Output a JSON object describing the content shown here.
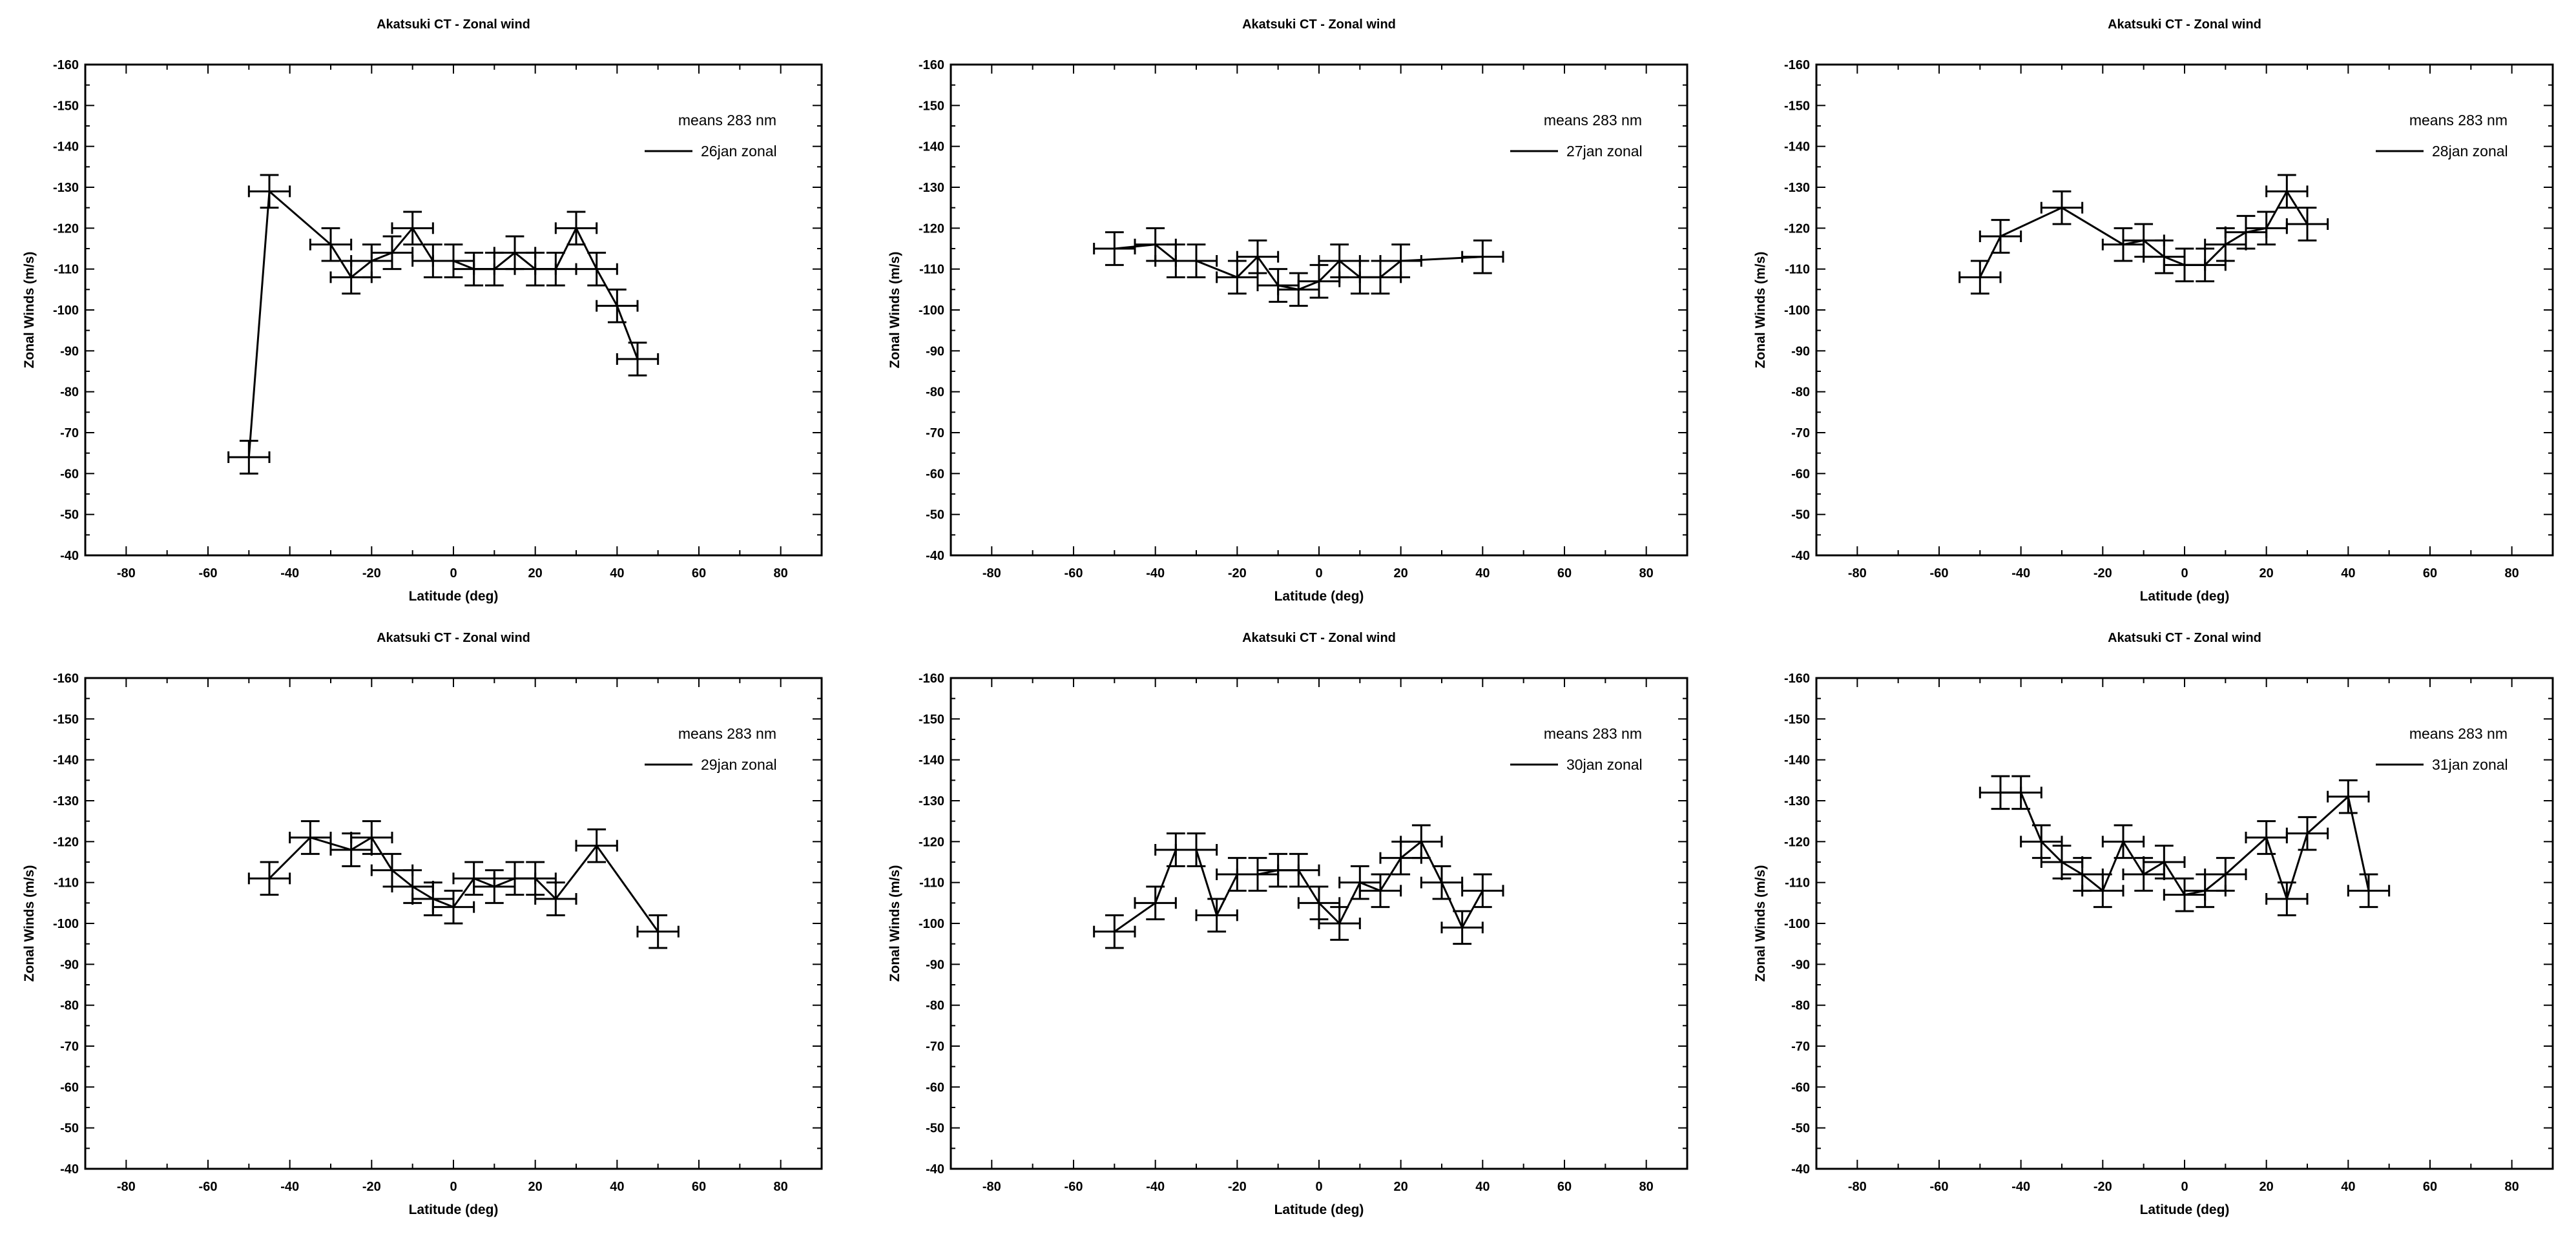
{
  "chart_data": [
    {
      "type": "scatter",
      "title": "Akatsuki CT - Zonal wind",
      "xlabel": "Latitude (deg)",
      "ylabel": "Zonal Winds (m/s)",
      "xlim": [
        -90,
        90
      ],
      "ylim": [
        -40,
        -160
      ],
      "xticks": [
        -80,
        -60,
        -40,
        -20,
        0,
        20,
        40,
        60,
        80
      ],
      "yticks": [
        -160,
        -150,
        -140,
        -130,
        -120,
        -110,
        -100,
        -90,
        -80,
        -70,
        -60,
        -50,
        -40
      ],
      "legend_title": "means 283 nm",
      "legend_position": "top-right",
      "grid": false,
      "series": [
        {
          "name": "26jan zonal",
          "x": [
            -50,
            -45,
            -30,
            -25,
            -20,
            -15,
            -10,
            -5,
            0,
            5,
            10,
            15,
            20,
            25,
            30,
            35,
            40,
            45
          ],
          "y": [
            -64,
            -129,
            -116,
            -108,
            -112,
            -114,
            -120,
            -112,
            -112,
            -110,
            -110,
            -114,
            -110,
            -110,
            -120,
            -110,
            -101,
            -88
          ],
          "xerr": 5,
          "yerr": [
            4,
            4,
            4,
            4,
            4,
            4,
            4,
            4,
            4,
            4,
            4,
            4,
            4,
            4,
            4,
            4,
            4,
            4
          ]
        }
      ]
    },
    {
      "type": "scatter",
      "title": "Akatsuki CT - Zonal wind",
      "xlabel": "Latitude (deg)",
      "ylabel": "Zonal Winds (m/s)",
      "xlim": [
        -90,
        90
      ],
      "ylim": [
        -40,
        -160
      ],
      "xticks": [
        -80,
        -60,
        -40,
        -20,
        0,
        20,
        40,
        60,
        80
      ],
      "yticks": [
        -160,
        -150,
        -140,
        -130,
        -120,
        -110,
        -100,
        -90,
        -80,
        -70,
        -60,
        -50,
        -40
      ],
      "legend_title": "means 283 nm",
      "legend_position": "top-right",
      "grid": false,
      "series": [
        {
          "name": "27jan zonal",
          "x": [
            -50,
            -40,
            -35,
            -30,
            -20,
            -15,
            -10,
            -5,
            0,
            5,
            10,
            15,
            20,
            40
          ],
          "y": [
            -115,
            -116,
            -112,
            -112,
            -108,
            -113,
            -106,
            -105,
            -107,
            -112,
            -108,
            -108,
            -112,
            -113
          ],
          "xerr": 5,
          "yerr": [
            4,
            4,
            4,
            4,
            4,
            4,
            4,
            4,
            4,
            4,
            4,
            4,
            4,
            4
          ]
        }
      ]
    },
    {
      "type": "scatter",
      "title": "Akatsuki CT - Zonal wind",
      "xlabel": "Latitude (deg)",
      "ylabel": "Zonal Winds (m/s)",
      "xlim": [
        -90,
        90
      ],
      "ylim": [
        -40,
        -160
      ],
      "xticks": [
        -80,
        -60,
        -40,
        -20,
        0,
        20,
        40,
        60,
        80
      ],
      "yticks": [
        -160,
        -150,
        -140,
        -130,
        -120,
        -110,
        -100,
        -90,
        -80,
        -70,
        -60,
        -50,
        -40
      ],
      "legend_title": "means 283 nm",
      "legend_position": "top-right",
      "grid": false,
      "series": [
        {
          "name": "28jan zonal",
          "x": [
            -50,
            -45,
            -30,
            -15,
            -10,
            -5,
            0,
            5,
            10,
            15,
            20,
            25,
            30
          ],
          "y": [
            -108,
            -118,
            -125,
            -116,
            -117,
            -113,
            -111,
            -111,
            -116,
            -119,
            -120,
            -129,
            -121
          ],
          "xerr": 5,
          "yerr": [
            4,
            4,
            4,
            4,
            4,
            4,
            4,
            4,
            4,
            4,
            4,
            4,
            4
          ]
        }
      ]
    },
    {
      "type": "scatter",
      "title": "Akatsuki CT - Zonal wind",
      "xlabel": "Latitude (deg)",
      "ylabel": "Zonal Winds (m/s)",
      "xlim": [
        -90,
        90
      ],
      "ylim": [
        -40,
        -160
      ],
      "xticks": [
        -80,
        -60,
        -40,
        -20,
        0,
        20,
        40,
        60,
        80
      ],
      "yticks": [
        -160,
        -150,
        -140,
        -130,
        -120,
        -110,
        -100,
        -90,
        -80,
        -70,
        -60,
        -50,
        -40
      ],
      "legend_title": "means 283 nm",
      "legend_position": "top-right",
      "grid": false,
      "series": [
        {
          "name": "29jan zonal",
          "x": [
            -45,
            -35,
            -25,
            -20,
            -15,
            -10,
            -5,
            0,
            5,
            10,
            15,
            20,
            25,
            35,
            50
          ],
          "y": [
            -111,
            -121,
            -118,
            -121,
            -113,
            -109,
            -106,
            -104,
            -111,
            -109,
            -111,
            -111,
            -106,
            -119,
            -98
          ],
          "xerr": 5,
          "yerr": [
            4,
            4,
            4,
            4,
            4,
            4,
            4,
            4,
            4,
            4,
            4,
            4,
            4,
            4,
            4
          ]
        }
      ]
    },
    {
      "type": "scatter",
      "title": "Akatsuki CT - Zonal wind",
      "xlabel": "Latitude (deg)",
      "ylabel": "Zonal Winds (m/s)",
      "xlim": [
        -90,
        90
      ],
      "ylim": [
        -40,
        -160
      ],
      "xticks": [
        -80,
        -60,
        -40,
        -20,
        0,
        20,
        40,
        60,
        80
      ],
      "yticks": [
        -160,
        -150,
        -140,
        -130,
        -120,
        -110,
        -100,
        -90,
        -80,
        -70,
        -60,
        -50,
        -40
      ],
      "legend_title": "means 283 nm",
      "legend_position": "top-right",
      "grid": false,
      "series": [
        {
          "name": "30jan zonal",
          "x": [
            -50,
            -40,
            -35,
            -30,
            -25,
            -20,
            -15,
            -10,
            -5,
            0,
            5,
            10,
            15,
            20,
            25,
            30,
            35,
            40
          ],
          "y": [
            -98,
            -105,
            -118,
            -118,
            -102,
            -112,
            -112,
            -113,
            -113,
            -105,
            -100,
            -110,
            -108,
            -116,
            -120,
            -110,
            -99,
            -108
          ],
          "xerr": 5,
          "yerr": [
            4,
            4,
            4,
            4,
            4,
            4,
            4,
            4,
            4,
            4,
            4,
            4,
            4,
            4,
            4,
            4,
            4,
            4
          ]
        }
      ]
    },
    {
      "type": "scatter",
      "title": "Akatsuki CT - Zonal wind",
      "xlabel": "Latitude (deg)",
      "ylabel": "Zonal Winds (m/s)",
      "xlim": [
        -90,
        90
      ],
      "ylim": [
        -40,
        -160
      ],
      "xticks": [
        -80,
        -60,
        -40,
        -20,
        0,
        20,
        40,
        60,
        80
      ],
      "yticks": [
        -160,
        -150,
        -140,
        -130,
        -120,
        -110,
        -100,
        -90,
        -80,
        -70,
        -60,
        -50,
        -40
      ],
      "legend_title": "means 283 nm",
      "legend_position": "top-right",
      "grid": false,
      "series": [
        {
          "name": "31jan zonal",
          "x": [
            -45,
            -40,
            -35,
            -30,
            -25,
            -20,
            -15,
            -10,
            -5,
            0,
            5,
            10,
            20,
            25,
            30,
            40,
            45
          ],
          "y": [
            -132,
            -132,
            -120,
            -115,
            -112,
            -108,
            -120,
            -112,
            -115,
            -107,
            -108,
            -112,
            -121,
            -106,
            -122,
            -131,
            -108
          ],
          "xerr": 5,
          "yerr": [
            4,
            4,
            4,
            4,
            4,
            4,
            4,
            4,
            4,
            4,
            4,
            4,
            4,
            4,
            4,
            4,
            4
          ]
        }
      ]
    }
  ]
}
